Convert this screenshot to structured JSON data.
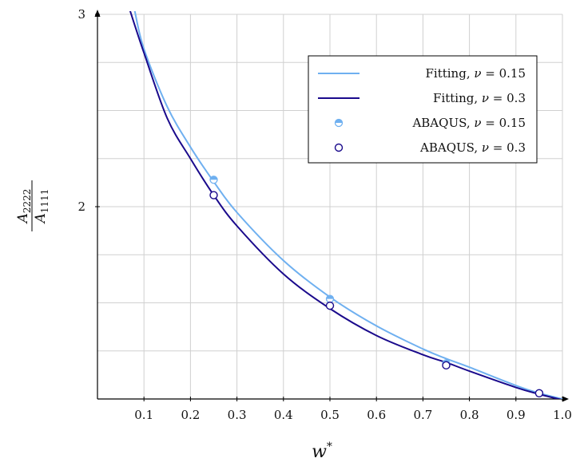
{
  "chart_data": {
    "type": "line",
    "xlabel_base": "w",
    "xlabel_sup": "*",
    "ylabel": {
      "numerator": {
        "base": "A",
        "sub": "2222"
      },
      "denominator": {
        "base": "A",
        "sub": "1111"
      }
    },
    "xlim": [
      0,
      1.0
    ],
    "ylim": [
      1,
      3
    ],
    "x_ticks": [
      "0.1",
      "0.2",
      "0.3",
      "0.4",
      "0.5",
      "0.6",
      "0.7",
      "0.8",
      "0.9",
      "1.0"
    ],
    "y_ticks": [
      "2",
      "3"
    ],
    "grid": true,
    "legend_position": "top-right",
    "series": [
      {
        "name": "Fitting, ν = 0.15",
        "legend_prefix": "Fitting, ",
        "nu_value": "0.15",
        "kind": "line",
        "color": "#6fb0f0",
        "x": [
          0.08,
          0.1,
          0.15,
          0.2,
          0.25,
          0.3,
          0.4,
          0.5,
          0.6,
          0.7,
          0.75,
          0.8,
          0.9,
          0.95,
          1.0
        ],
        "y": [
          3.02,
          2.82,
          2.52,
          2.31,
          2.13,
          1.97,
          1.72,
          1.53,
          1.38,
          1.26,
          1.21,
          1.165,
          1.07,
          1.03,
          1.0
        ]
      },
      {
        "name": "Fitting, ν = 0.3",
        "legend_prefix": "Fitting, ",
        "nu_value": "0.3",
        "kind": "line",
        "color": "#1a0a8c",
        "x": [
          0.07,
          0.1,
          0.15,
          0.2,
          0.25,
          0.3,
          0.4,
          0.5,
          0.6,
          0.7,
          0.75,
          0.8,
          0.9,
          0.95,
          1.0
        ],
        "y": [
          3.02,
          2.8,
          2.46,
          2.25,
          2.06,
          1.9,
          1.65,
          1.47,
          1.33,
          1.23,
          1.19,
          1.145,
          1.06,
          1.025,
          0.995
        ]
      },
      {
        "name": "ABAQUS, ν = 0.15",
        "legend_prefix": "ABAQUS, ",
        "nu_value": "0.15",
        "kind": "scatter",
        "marker": "half-filled-circle",
        "color": "#6fb0f0",
        "x": [
          0.25,
          0.5,
          0.75,
          0.95
        ],
        "y": [
          2.14,
          1.52,
          1.185,
          1.03
        ]
      },
      {
        "name": "ABAQUS, ν = 0.3",
        "legend_prefix": "ABAQUS, ",
        "nu_value": "0.3",
        "kind": "scatter",
        "marker": "open-circle",
        "color": "#1a0a8c",
        "x": [
          0.25,
          0.5,
          0.75,
          0.95
        ],
        "y": [
          2.06,
          1.485,
          1.175,
          1.03
        ]
      }
    ]
  }
}
